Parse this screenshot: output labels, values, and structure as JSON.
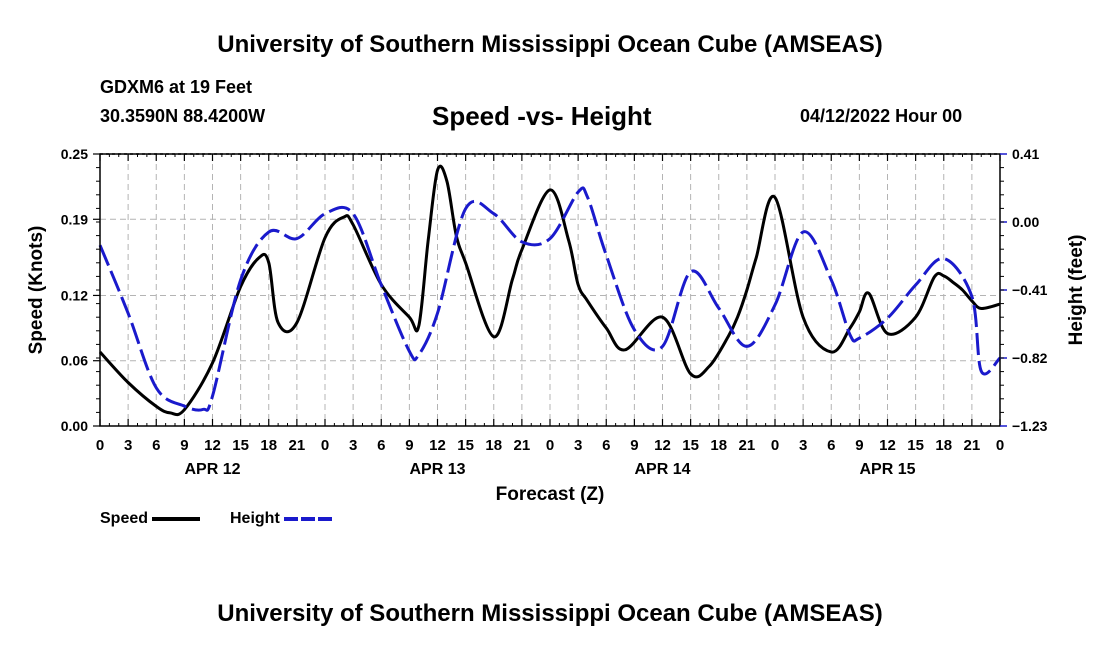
{
  "header": {
    "title": "University of Southern Mississippi Ocean Cube (AMSEAS)",
    "station": "GDXM6 at 19 Feet",
    "coords": "30.3590N  88.4200W",
    "subtitle": "Speed -vs- Height",
    "datetime": "04/12/2022 Hour 00"
  },
  "footer": {
    "title": "University of Southern Mississippi Ocean Cube (AMSEAS)"
  },
  "legend": {
    "speed": "Speed",
    "height": "Height"
  },
  "colors": {
    "speed": "#000000",
    "height": "#1a1acc",
    "grid": "#b4b4b4"
  },
  "chart_data": {
    "type": "line",
    "title": "Speed -vs- Height",
    "xlabel": "Forecast (Z)",
    "ylabel": "Speed (Knots)",
    "y2label": "Height (feet)",
    "x_unit": "hours since APR 12 00Z",
    "xlim": [
      0,
      96
    ],
    "ylim": [
      0,
      0.25
    ],
    "y2lim": [
      -1.23,
      0.41
    ],
    "x_ticks": [
      0,
      3,
      6,
      9,
      12,
      15,
      18,
      21,
      24,
      27,
      30,
      33,
      36,
      39,
      42,
      45,
      48,
      51,
      54,
      57,
      60,
      63,
      66,
      69,
      72,
      75,
      78,
      81,
      84,
      87,
      90,
      93,
      96
    ],
    "x_tick_labels": [
      "0",
      "3",
      "6",
      "9",
      "12",
      "15",
      "18",
      "21",
      "0",
      "3",
      "6",
      "9",
      "12",
      "15",
      "18",
      "21",
      "0",
      "3",
      "6",
      "9",
      "12",
      "15",
      "18",
      "21",
      "0",
      "3",
      "6",
      "9",
      "12",
      "15",
      "18",
      "21",
      "0"
    ],
    "date_labels": [
      {
        "x": 12,
        "label": "APR 12"
      },
      {
        "x": 36,
        "label": "APR 13"
      },
      {
        "x": 60,
        "label": "APR 14"
      },
      {
        "x": 84,
        "label": "APR 15"
      }
    ],
    "y_ticks": [
      0.0,
      0.06,
      0.12,
      0.19,
      0.25
    ],
    "y_tick_labels": [
      "0.00",
      "0.06",
      "0.12",
      "0.19",
      "0.25"
    ],
    "y2_ticks": [
      -1.23,
      -0.82,
      -0.41,
      0.0,
      0.41
    ],
    "y2_tick_labels": [
      "−1.23",
      "−0.82",
      "−0.41",
      "0.00",
      "0.41"
    ],
    "series": [
      {
        "name": "Speed",
        "axis": "left",
        "style": "solid",
        "x": [
          0,
          3,
          6,
          7.5,
          9,
          12,
          15,
          17,
          18,
          19,
          21,
          24,
          26,
          27,
          30,
          33,
          34,
          35,
          36,
          37,
          38,
          39,
          42,
          44,
          45,
          48,
          50,
          51,
          52,
          54,
          56,
          60,
          63,
          65,
          67,
          68,
          69,
          70,
          72,
          75,
          78,
          80,
          81,
          82,
          84,
          87,
          89,
          90,
          91,
          92,
          93,
          94,
          96
        ],
        "y": [
          0.068,
          0.04,
          0.018,
          0.012,
          0.015,
          0.058,
          0.128,
          0.155,
          0.15,
          0.095,
          0.095,
          0.173,
          0.192,
          0.185,
          0.13,
          0.1,
          0.092,
          0.17,
          0.235,
          0.225,
          0.175,
          0.15,
          0.082,
          0.135,
          0.162,
          0.217,
          0.17,
          0.13,
          0.115,
          0.09,
          0.07,
          0.1,
          0.048,
          0.055,
          0.082,
          0.1,
          0.125,
          0.155,
          0.21,
          0.1,
          0.068,
          0.09,
          0.105,
          0.122,
          0.085,
          0.1,
          0.137,
          0.138,
          0.132,
          0.125,
          0.115,
          0.108,
          0.112
        ]
      },
      {
        "name": "Height",
        "axis": "right",
        "style": "dashed",
        "x": [
          0,
          3,
          6,
          9,
          11,
          12,
          15,
          18,
          21,
          24,
          27,
          30,
          33,
          34,
          36,
          39,
          42,
          45,
          48,
          51,
          52,
          54,
          57,
          60,
          63,
          66,
          69,
          72,
          75,
          78,
          80,
          81,
          84,
          87,
          90,
          93,
          94,
          96
        ],
        "y": [
          -0.14,
          -0.55,
          -1.0,
          -1.11,
          -1.13,
          -1.05,
          -0.35,
          -0.06,
          -0.1,
          0.05,
          0.05,
          -0.38,
          -0.78,
          -0.8,
          -0.55,
          0.08,
          0.05,
          -0.12,
          -0.1,
          0.18,
          0.15,
          -0.2,
          -0.65,
          -0.75,
          -0.3,
          -0.52,
          -0.75,
          -0.5,
          -0.06,
          -0.35,
          -0.68,
          -0.7,
          -0.58,
          -0.38,
          -0.22,
          -0.45,
          -0.9,
          -0.82
        ]
      }
    ]
  }
}
